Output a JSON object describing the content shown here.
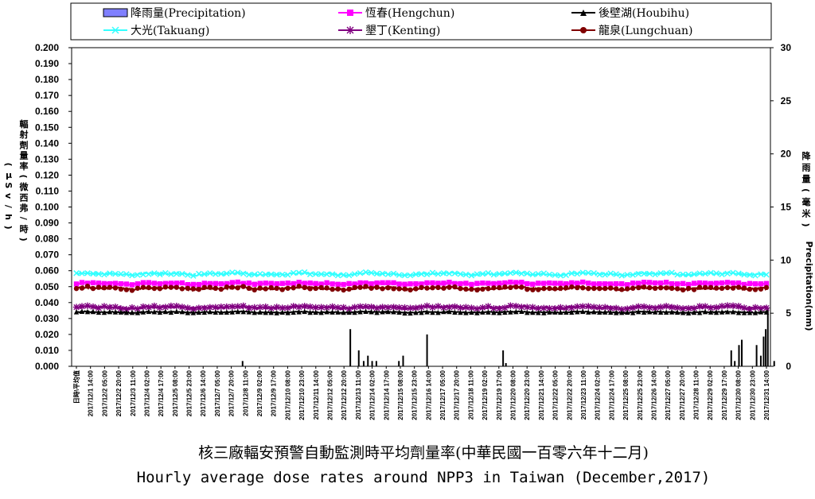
{
  "chart_data": {
    "type": "line",
    "title": "核三廠輻安預警自動監測時平均劑量率(中華民國一百零六年十二月)",
    "subtitle": "Hourly average dose rates around NPP3 in Taiwan (December,2017)",
    "ylabel_left": "輻射劑量率(微西弗/時)",
    "ylabel_left_unit": "(μSv/h)",
    "ylabel_right": "降雨量(毫米)",
    "ylabel_right_en": "Precipitation(mm)",
    "ylim_left": [
      0,
      0.2
    ],
    "ylim_right": [
      0,
      30
    ],
    "yticks_left": [
      "0.000",
      "0.010",
      "0.020",
      "0.030",
      "0.040",
      "0.050",
      "0.060",
      "0.070",
      "0.080",
      "0.090",
      "0.100",
      "0.110",
      "0.120",
      "0.130",
      "0.140",
      "0.150",
      "0.160",
      "0.170",
      "0.180",
      "0.190",
      "0.200"
    ],
    "yticks_right": [
      "0",
      "5",
      "10",
      "15",
      "20",
      "25",
      "30"
    ],
    "xticks": [
      "日時\\平均值",
      "2017/12/1 14:00",
      "2017/12/2 05:00",
      "2017/12/2 20:00",
      "2017/12/3 11:00",
      "2017/12/4 02:00",
      "2017/12/4 17:00",
      "2017/12/5 08:00",
      "2017/12/5 23:00",
      "2017/12/6 14:00",
      "2017/12/7 05:00",
      "2017/12/7 20:00",
      "2017/12/8 11:00",
      "2017/12/9 02:00",
      "2017/12/9 17:00",
      "2017/12/10 08:00",
      "2017/12/10 23:00",
      "2017/12/11 14:00",
      "2017/12/12 05:00",
      "2017/12/12 20:00",
      "2017/12/13 11:00",
      "2017/12/14 02:00",
      "2017/12/14 17:00",
      "2017/12/15 08:00",
      "2017/12/15 23:00",
      "2017/12/16 14:00",
      "2017/12/17 05:00",
      "2017/12/17 20:00",
      "2017/12/18 11:00",
      "2017/12/19 02:00",
      "2017/12/19 17:00",
      "2017/12/20 08:00",
      "2017/12/20 23:00",
      "2017/12/21 14:00",
      "2017/12/22 05:00",
      "2017/12/22 20:00",
      "2017/12/23 11:00",
      "2017/12/24 02:00",
      "2017/12/24 17:00",
      "2017/12/25 08:00",
      "2017/12/25 23:00",
      "2017/12/26 14:00",
      "2017/12/27 05:00",
      "2017/12/27 20:00",
      "2017/12/28 11:00",
      "2017/12/29 02:00",
      "2017/12/29 17:00",
      "2017/12/30 08:00",
      "2017/12/30 23:00",
      "2017/12/31 14:00"
    ],
    "legend": [
      {
        "name": "降雨量(Precipitation)",
        "color": "#8080ff",
        "marker": "bar"
      },
      {
        "name": "恆春(Hengchun)",
        "color": "#ff00ff",
        "marker": "square"
      },
      {
        "name": "後壁湖(Houbihu)",
        "color": "#000000",
        "marker": "triangle"
      },
      {
        "name": "大光(Takuang)",
        "color": "#33ffff",
        "marker": "x"
      },
      {
        "name": "墾丁(Kenting)",
        "color": "#800080",
        "marker": "star"
      },
      {
        "name": "龍泉(Lungchuan)",
        "color": "#800000",
        "marker": "circle"
      }
    ],
    "series": [
      {
        "name": "大光(Takuang)",
        "color": "#33ffff",
        "base": 0.058,
        "noise": 0.0012
      },
      {
        "name": "恆春(Hengchun)",
        "color": "#ff00ff",
        "base": 0.052,
        "noise": 0.0009
      },
      {
        "name": "龍泉(Lungchuan)",
        "color": "#800000",
        "base": 0.049,
        "noise": 0.0013
      },
      {
        "name": "墾丁(Kenting)",
        "color": "#800080",
        "base": 0.037,
        "noise": 0.0013
      },
      {
        "name": "後壁湖(Houbihu)",
        "color": "#000000",
        "base": 0.034,
        "noise": 0.0006
      }
    ],
    "precipitation_mm": [
      {
        "tick": 11.8,
        "value": 0.5
      },
      {
        "tick": 19.45,
        "value": 3.5
      },
      {
        "tick": 20.05,
        "value": 1.5
      },
      {
        "tick": 20.4,
        "value": 0.5
      },
      {
        "tick": 20.7,
        "value": 1.0
      },
      {
        "tick": 21.0,
        "value": 0.5
      },
      {
        "tick": 21.3,
        "value": 0.5
      },
      {
        "tick": 22.9,
        "value": 0.5
      },
      {
        "tick": 23.2,
        "value": 1.0
      },
      {
        "tick": 24.9,
        "value": 3.0
      },
      {
        "tick": 30.3,
        "value": 1.5
      },
      {
        "tick": 30.5,
        "value": 0.3
      },
      {
        "tick": 46.5,
        "value": 1.5
      },
      {
        "tick": 46.75,
        "value": 0.5
      },
      {
        "tick": 47.05,
        "value": 2.0
      },
      {
        "tick": 47.25,
        "value": 2.5
      },
      {
        "tick": 48.3,
        "value": 2.0
      },
      {
        "tick": 48.6,
        "value": 1.0
      },
      {
        "tick": 48.8,
        "value": 2.8
      },
      {
        "tick": 48.95,
        "value": 3.5
      },
      {
        "tick": 49.1,
        "value": 5.5
      },
      {
        "tick": 49.55,
        "value": 0.5
      }
    ]
  }
}
